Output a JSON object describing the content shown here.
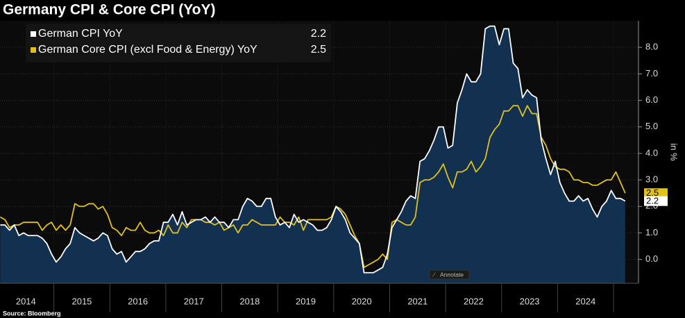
{
  "chart_data": {
    "type": "line",
    "title": "Germany CPI & Core CPI (YoY)",
    "source": "Source: Bloomberg",
    "y_axis_label": "in %",
    "axis_position": "right",
    "grid": true,
    "legend_position": "top-left",
    "ylim": [
      -0.9,
      9.0
    ],
    "yticks": [
      {
        "value": 0,
        "label": "0.0"
      },
      {
        "value": 1,
        "label": "1.0"
      },
      {
        "value": 2,
        "label": "2.0"
      },
      {
        "value": 3,
        "label": "3.0"
      },
      {
        "value": 4,
        "label": "4.0"
      },
      {
        "value": 5,
        "label": "5.0"
      },
      {
        "value": 6,
        "label": "6.0"
      },
      {
        "value": 7,
        "label": "7.0"
      },
      {
        "value": 8,
        "label": "8.0"
      }
    ],
    "categories": [
      null,
      null,
      null,
      null,
      null,
      null,
      "2014",
      null,
      null,
      null,
      null,
      null,
      null,
      null,
      null,
      null,
      null,
      null,
      "2015",
      null,
      null,
      null,
      null,
      null,
      null,
      null,
      null,
      null,
      null,
      null,
      "2016",
      null,
      null,
      null,
      null,
      null,
      null,
      null,
      null,
      null,
      null,
      null,
      "2017",
      null,
      null,
      null,
      null,
      null,
      null,
      null,
      null,
      null,
      null,
      null,
      "2018",
      null,
      null,
      null,
      null,
      null,
      null,
      null,
      null,
      null,
      null,
      null,
      "2019",
      null,
      null,
      null,
      null,
      null,
      null,
      null,
      null,
      null,
      null,
      null,
      "2020",
      null,
      null,
      null,
      null,
      null,
      null,
      null,
      null,
      null,
      null,
      null,
      "2021",
      null,
      null,
      null,
      null,
      null,
      null,
      null,
      null,
      null,
      null,
      null,
      "2022",
      null,
      null,
      null,
      null,
      null,
      null,
      null,
      null,
      null,
      null,
      null,
      "2023",
      null,
      null,
      null,
      null,
      null,
      null,
      null,
      null,
      null,
      null,
      null,
      "2024",
      null,
      null,
      null,
      null,
      null,
      null,
      null,
      null
    ],
    "series": [
      {
        "name": "German CPI YoY",
        "color": "#ffffff",
        "area_color": "#12304f",
        "values": [
          1.3,
          1.3,
          1.1,
          1.3,
          0.9,
          1.0,
          0.9,
          0.9,
          0.9,
          0.8,
          0.6,
          0.2,
          -0.1,
          0.1,
          0.4,
          0.6,
          1.2,
          1.0,
          0.9,
          0.8,
          0.7,
          0.8,
          1.0,
          0.9,
          0.4,
          0.2,
          0.3,
          -0.1,
          0.1,
          0.3,
          0.3,
          0.4,
          0.6,
          0.7,
          0.7,
          1.4,
          1.4,
          1.7,
          1.3,
          1.8,
          1.3,
          1.4,
          1.5,
          1.5,
          1.6,
          1.4,
          1.6,
          1.4,
          1.4,
          1.2,
          1.5,
          1.5,
          2.0,
          2.3,
          2.2,
          2.0,
          2.0,
          2.3,
          2.3,
          1.6,
          1.3,
          1.4,
          1.2,
          1.7,
          1.4,
          1.5,
          1.4,
          1.3,
          1.1,
          1.1,
          1.2,
          1.5,
          2.0,
          1.8,
          1.5,
          1.0,
          0.8,
          0.6,
          -0.5,
          -0.5,
          -0.5,
          -0.4,
          -0.3,
          0.2,
          1.2,
          1.5,
          1.8,
          2.2,
          2.4,
          2.3,
          3.7,
          3.8,
          4.1,
          4.5,
          5.0,
          5.0,
          4.2,
          4.3,
          5.9,
          6.4,
          7.0,
          6.7,
          6.7,
          7.0,
          8.7,
          8.8,
          8.8,
          8.1,
          8.7,
          8.7,
          7.4,
          7.2,
          6.1,
          6.4,
          6.2,
          6.1,
          4.5,
          3.8,
          3.2,
          3.7,
          2.9,
          2.5,
          2.2,
          2.2,
          2.4,
          2.2,
          2.3,
          1.9,
          1.6,
          2.0,
          2.2,
          2.6,
          2.3,
          2.3,
          2.2
        ]
      },
      {
        "name": "German Core CPI (excl Food & Energy) YoY",
        "color": "#e2c21a",
        "values": [
          1.6,
          1.5,
          1.2,
          1.3,
          1.3,
          1.4,
          1.4,
          1.4,
          1.4,
          1.1,
          1.3,
          1.4,
          1.1,
          1.3,
          1.1,
          1.3,
          2.1,
          2.0,
          2.0,
          2.1,
          2.1,
          1.9,
          2.0,
          1.7,
          1.2,
          1.1,
          0.9,
          1.2,
          1.1,
          1.1,
          1.4,
          1.1,
          1.0,
          1.0,
          1.1,
          0.9,
          1.3,
          1.0,
          1.0,
          1.4,
          1.2,
          1.5,
          1.5,
          1.5,
          1.4,
          1.4,
          1.3,
          1.4,
          1.1,
          1.2,
          1.3,
          1.0,
          1.3,
          1.3,
          1.5,
          1.4,
          1.3,
          1.3,
          1.3,
          1.3,
          1.6,
          1.4,
          1.4,
          1.3,
          1.6,
          1.1,
          1.5,
          1.5,
          1.5,
          1.5,
          1.5,
          1.6,
          2.0,
          1.9,
          1.7,
          1.3,
          0.9,
          0.6,
          -0.3,
          -0.2,
          -0.1,
          0.0,
          0.2,
          0.0,
          1.4,
          1.5,
          1.4,
          1.3,
          1.3,
          1.6,
          2.9,
          3.0,
          3.0,
          3.1,
          3.3,
          3.6,
          3.1,
          2.7,
          3.3,
          3.3,
          3.4,
          3.7,
          3.3,
          3.5,
          3.8,
          4.6,
          4.9,
          5.1,
          5.6,
          5.6,
          5.8,
          5.8,
          5.4,
          5.8,
          5.5,
          5.5,
          4.6,
          4.3,
          3.8,
          3.5,
          3.4,
          3.4,
          3.3,
          3.0,
          3.0,
          2.9,
          2.9,
          2.8,
          2.8,
          2.9,
          3.0,
          3.0,
          3.3,
          2.9,
          2.5
        ]
      }
    ]
  },
  "ui": {
    "annotate": "Annotate"
  }
}
